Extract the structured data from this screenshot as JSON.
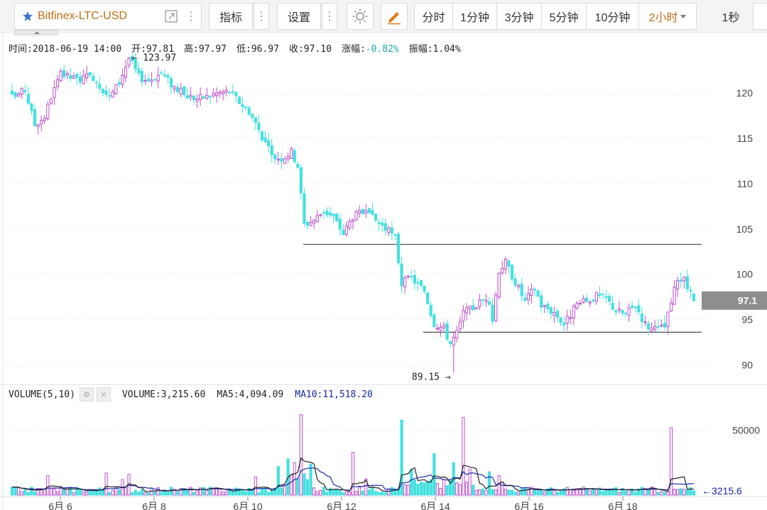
{
  "toolbar": {
    "symbol": "Bitfinex-LTC-USD",
    "indicator_label": "指标",
    "settings_label": "设置",
    "timeframes": [
      "分时",
      "1分钟",
      "3分钟",
      "5分钟",
      "10分钟",
      "2小时"
    ],
    "active_timeframe": "2小时",
    "live_label": "1秒"
  },
  "info": {
    "time": "时间:2018-06-19 14:00",
    "open": "开:97.81",
    "high": "高:97.97",
    "low": "低:96.97",
    "close": "收:97.10",
    "change_label": "涨幅:",
    "change_value": "-0.82%",
    "amplitude": "振幅:1.04%"
  },
  "volume_legend": {
    "title": "VOLUME(5,10)",
    "volume": "VOLUME:3,215.60",
    "ma5": "MA5:4,094.09",
    "ma10": "MA10:11,518.20"
  },
  "colors": {
    "up": "#bd4fcc",
    "down": "#45e0e0",
    "ma5": "#222222",
    "ma10": "#1a2aa8",
    "grid": "#e3e3e3",
    "last_price_bg": "#8e8e8e"
  },
  "chart_data": {
    "type": "candlestick",
    "price_axis": {
      "min": 88,
      "max": 124,
      "ticks": [
        120,
        115,
        110,
        105,
        100,
        95,
        90
      ]
    },
    "volume_axis": {
      "min": 0,
      "max": 70000,
      "ticks": [
        50000
      ]
    },
    "x_ticks": [
      {
        "label": "6月 6",
        "date": "2018-06-06"
      },
      {
        "label": "6月 8",
        "date": "2018-06-08"
      },
      {
        "label": "6月 10",
        "date": "2018-06-10"
      },
      {
        "label": "6月 12",
        "date": "2018-06-12"
      },
      {
        "label": "6月 14",
        "date": "2018-06-14"
      },
      {
        "label": "6月 16",
        "date": "2018-06-16"
      },
      {
        "label": "6月 18",
        "date": "2018-06-18"
      }
    ],
    "annotations": {
      "high_label": "← 123.97",
      "high_value": 123.97,
      "low_label": "89.15 →",
      "low_value": 89.15,
      "last_price": "97.1",
      "last_volume": "←3215.6"
    },
    "support_lines": [
      103.3,
      93.6
    ],
    "anchors": [
      [
        0,
        119.5
      ],
      [
        4,
        120.3
      ],
      [
        7,
        116.5
      ],
      [
        10,
        117.4
      ],
      [
        12,
        119.6
      ],
      [
        15,
        122.0
      ],
      [
        20,
        121.5
      ],
      [
        25,
        121.8
      ],
      [
        30,
        119.5
      ],
      [
        33,
        121.2
      ],
      [
        36,
        123.9
      ],
      [
        39,
        121.8
      ],
      [
        42,
        121.4
      ],
      [
        46,
        122.2
      ],
      [
        49,
        121.0
      ],
      [
        53,
        119.8
      ],
      [
        57,
        119.4
      ],
      [
        60,
        119.6
      ],
      [
        63,
        120.0
      ],
      [
        67,
        120.2
      ],
      [
        70,
        119.0
      ],
      [
        73,
        118.0
      ],
      [
        76,
        116.0
      ],
      [
        80,
        113.0
      ],
      [
        83,
        112.8
      ],
      [
        86,
        113.5
      ],
      [
        88,
        112.0
      ],
      [
        90,
        105.5
      ],
      [
        93,
        106.0
      ],
      [
        96,
        107.0
      ],
      [
        99,
        106.3
      ],
      [
        102,
        104.5
      ],
      [
        105,
        106.4
      ],
      [
        108,
        106.8
      ],
      [
        111,
        106.2
      ],
      [
        114,
        105.4
      ],
      [
        118,
        104.0
      ],
      [
        120,
        99.0
      ],
      [
        123,
        99.6
      ],
      [
        127,
        98.2
      ],
      [
        130,
        94.6
      ],
      [
        133,
        94.0
      ],
      [
        135,
        92.4
      ],
      [
        137,
        93.5
      ],
      [
        139,
        95.7
      ],
      [
        142,
        96.3
      ],
      [
        146,
        97.5
      ],
      [
        148,
        95.0
      ],
      [
        150,
        100.5
      ],
      [
        152,
        101.3
      ],
      [
        155,
        99.2
      ],
      [
        158,
        97.0
      ],
      [
        161,
        98.5
      ],
      [
        163,
        96.6
      ],
      [
        167,
        95.8
      ],
      [
        170,
        94.5
      ],
      [
        174,
        96.6
      ],
      [
        177,
        97.0
      ],
      [
        180,
        97.6
      ],
      [
        183,
        97.3
      ],
      [
        186,
        96.0
      ],
      [
        189,
        95.6
      ],
      [
        192,
        96.6
      ],
      [
        195,
        94.5
      ],
      [
        198,
        93.8
      ],
      [
        201,
        94.2
      ],
      [
        203,
        96.8
      ],
      [
        205,
        99.6
      ],
      [
        207,
        99.2
      ],
      [
        209,
        97.9
      ],
      [
        210,
        97.1
      ]
    ],
    "candle_count": 211,
    "volume_spikes": [
      {
        "i": 89,
        "v": 62000,
        "up": true
      },
      {
        "i": 87,
        "v": 25000,
        "up": true
      },
      {
        "i": 85,
        "v": 28000,
        "up": false
      },
      {
        "i": 92,
        "v": 24000,
        "up": false
      },
      {
        "i": 105,
        "v": 33000,
        "up": true
      },
      {
        "i": 109,
        "v": 12500,
        "up": true
      },
      {
        "i": 120,
        "v": 58000,
        "up": false
      },
      {
        "i": 123,
        "v": 20000,
        "up": false
      },
      {
        "i": 130,
        "v": 32000,
        "up": false
      },
      {
        "i": 136,
        "v": 25000,
        "up": false
      },
      {
        "i": 139,
        "v": 60000,
        "up": true
      },
      {
        "i": 141,
        "v": 20000,
        "up": true
      },
      {
        "i": 147,
        "v": 18000,
        "up": false
      },
      {
        "i": 150,
        "v": 15000,
        "up": true
      },
      {
        "i": 203,
        "v": 52000,
        "up": true
      },
      {
        "i": 29,
        "v": 17000,
        "up": true
      },
      {
        "i": 34,
        "v": 12000,
        "up": true
      },
      {
        "i": 36,
        "v": 16000,
        "up": true
      },
      {
        "i": 11,
        "v": 15000,
        "up": true
      },
      {
        "i": 75,
        "v": 14000,
        "up": true
      },
      {
        "i": 82,
        "v": 22000,
        "up": false
      }
    ]
  }
}
